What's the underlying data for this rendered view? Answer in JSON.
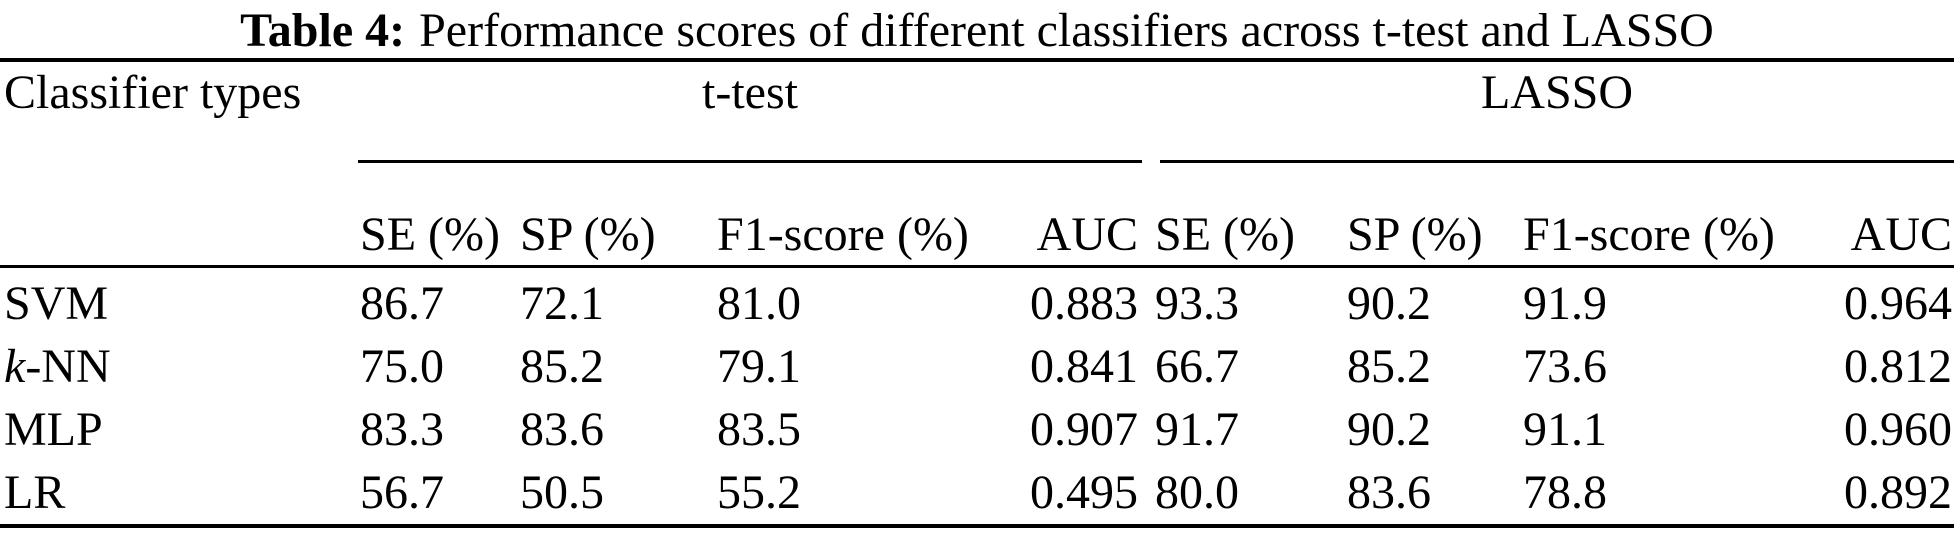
{
  "caption": {
    "label": "Table 4:",
    "text": "Performance scores of different classifiers across t-test and LASSO"
  },
  "table": {
    "row_header": "Classifier types",
    "group_headers": [
      "t-test",
      "LASSO"
    ],
    "sub_headers": [
      "SE (%)",
      "SP (%)",
      "F1-score (%)",
      "AUC",
      "SE (%)",
      "SP (%)",
      "F1-score (%)",
      "AUC"
    ],
    "rows": [
      {
        "classifier_parts": [
          {
            "text": "SVM",
            "italic": false
          }
        ],
        "values": [
          "86.7",
          "72.1",
          "81.0",
          "0.883",
          "93.3",
          "90.2",
          "91.9",
          "0.964"
        ]
      },
      {
        "classifier_parts": [
          {
            "text": "k",
            "italic": true
          },
          {
            "text": "-NN",
            "italic": false
          }
        ],
        "values": [
          "75.0",
          "85.2",
          "79.1",
          "0.841",
          "66.7",
          "85.2",
          "73.6",
          "0.812"
        ]
      },
      {
        "classifier_parts": [
          {
            "text": "MLP",
            "italic": false
          }
        ],
        "values": [
          "83.3",
          "83.6",
          "83.5",
          "0.907",
          "91.7",
          "90.2",
          "91.1",
          "0.960"
        ]
      },
      {
        "classifier_parts": [
          {
            "text": "LR",
            "italic": false
          }
        ],
        "values": [
          "56.7",
          "50.5",
          "55.2",
          "0.495",
          "80.0",
          "83.6",
          "78.8",
          "0.892"
        ]
      }
    ]
  }
}
